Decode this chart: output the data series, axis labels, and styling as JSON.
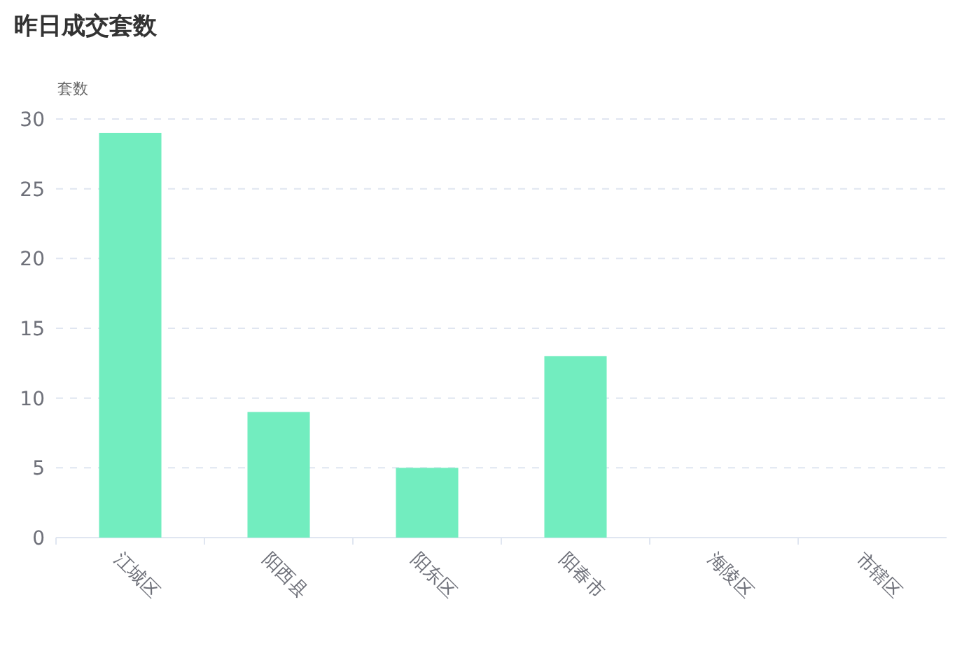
{
  "chart_data": {
    "type": "bar",
    "title": "昨日成交套数",
    "ylabel": "套数",
    "categories": [
      "江城区",
      "阳西县",
      "阳东区",
      "阳春市",
      "海陵区",
      "市辖区"
    ],
    "values": [
      29,
      9,
      5,
      13,
      0,
      0
    ],
    "color": "#72edbf",
    "ylim": [
      0,
      30
    ],
    "yticks": [
      0,
      5,
      10,
      15,
      20,
      25,
      30
    ],
    "grid": "y"
  }
}
